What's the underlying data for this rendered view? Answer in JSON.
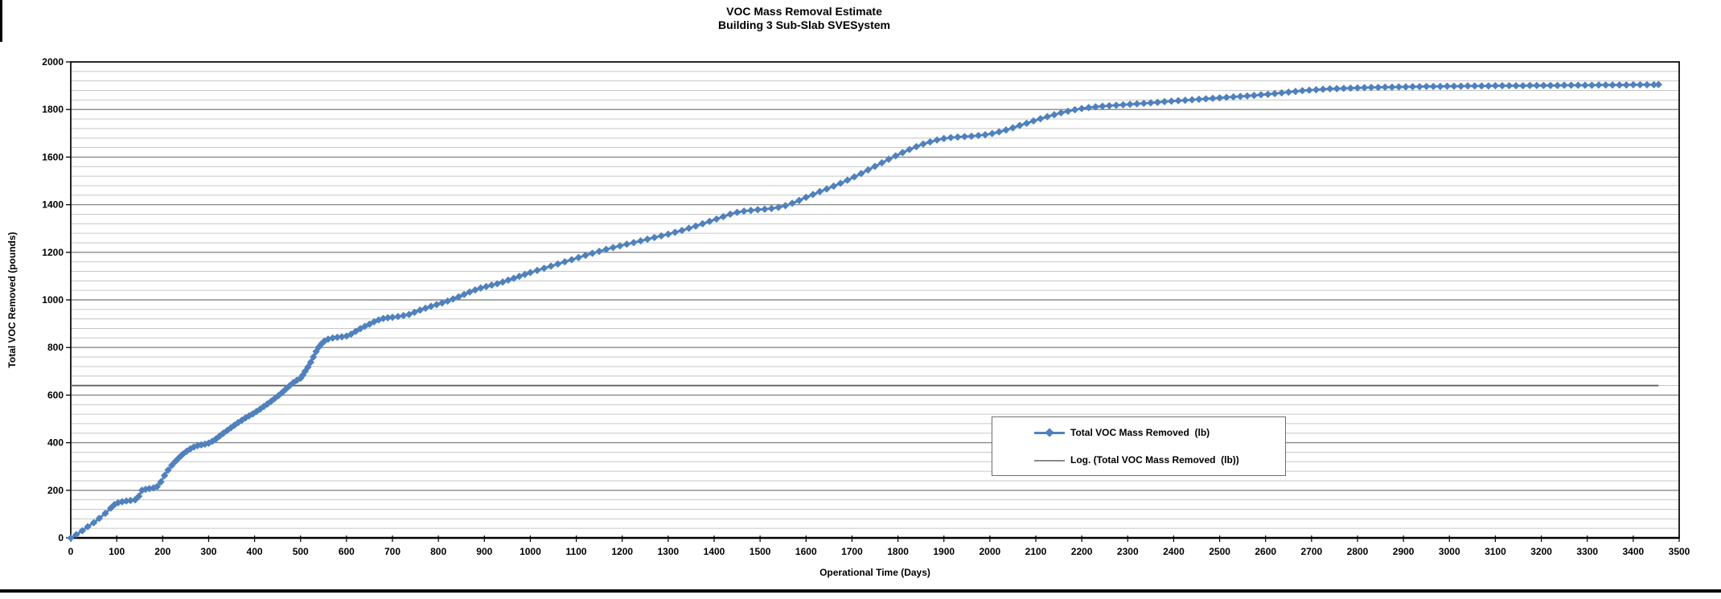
{
  "chart_data": {
    "type": "line",
    "title": "VOC Mass Removal Estimate",
    "subtitle": "Building 3 Sub-Slab SVESystem",
    "xlabel": "Operational Time (Days)",
    "ylabel": "Total VOC Removed (pounds)",
    "xlim": [
      0,
      3500
    ],
    "ylim": [
      0,
      2000
    ],
    "x_tick_step": 100,
    "y_tick_step": 200,
    "y_minor_step": 40,
    "grid": {
      "minor_color": "#c6c6c6",
      "major_color": "#8a8a8a"
    },
    "legend_position": "center-right",
    "series": [
      {
        "name": "Total VOC Mass Removed  (lb)",
        "color": "#4F81BD",
        "marker": "diamond",
        "points": [
          [
            0,
            0
          ],
          [
            12,
            14
          ],
          [
            25,
            30
          ],
          [
            37,
            47
          ],
          [
            50,
            64
          ],
          [
            62,
            82
          ],
          [
            75,
            103
          ],
          [
            87,
            125
          ],
          [
            95,
            140
          ],
          [
            103,
            148
          ],
          [
            112,
            152
          ],
          [
            121,
            155
          ],
          [
            130,
            157
          ],
          [
            140,
            160
          ],
          [
            148,
            175
          ],
          [
            155,
            200
          ],
          [
            163,
            204
          ],
          [
            171,
            207
          ],
          [
            180,
            210
          ],
          [
            188,
            216
          ],
          [
            196,
            235
          ],
          [
            204,
            262
          ],
          [
            212,
            285
          ],
          [
            220,
            305
          ],
          [
            228,
            322
          ],
          [
            236,
            338
          ],
          [
            244,
            352
          ],
          [
            252,
            364
          ],
          [
            260,
            374
          ],
          [
            268,
            382
          ],
          [
            276,
            388
          ],
          [
            284,
            391
          ],
          [
            292,
            394
          ],
          [
            300,
            398
          ],
          [
            308,
            406
          ],
          [
            316,
            416
          ],
          [
            324,
            428
          ],
          [
            332,
            440
          ],
          [
            340,
            451
          ],
          [
            348,
            462
          ],
          [
            356,
            473
          ],
          [
            364,
            484
          ],
          [
            372,
            494
          ],
          [
            380,
            504
          ],
          [
            388,
            513
          ],
          [
            396,
            521
          ],
          [
            404,
            531
          ],
          [
            412,
            541
          ],
          [
            420,
            552
          ],
          [
            428,
            563
          ],
          [
            436,
            574
          ],
          [
            444,
            586
          ],
          [
            452,
            598
          ],
          [
            460,
            611
          ],
          [
            468,
            625
          ],
          [
            476,
            639
          ],
          [
            484,
            652
          ],
          [
            492,
            662
          ],
          [
            500,
            671
          ],
          [
            505,
            684
          ],
          [
            510,
            700
          ],
          [
            516,
            718
          ],
          [
            522,
            738
          ],
          [
            528,
            760
          ],
          [
            534,
            783
          ],
          [
            540,
            802
          ],
          [
            546,
            816
          ],
          [
            552,
            827
          ],
          [
            560,
            835
          ],
          [
            570,
            840
          ],
          [
            580,
            843
          ],
          [
            590,
            845
          ],
          [
            600,
            848
          ],
          [
            610,
            856
          ],
          [
            620,
            868
          ],
          [
            630,
            879
          ],
          [
            640,
            889
          ],
          [
            650,
            898
          ],
          [
            660,
            908
          ],
          [
            670,
            916
          ],
          [
            680,
            922
          ],
          [
            690,
            925
          ],
          [
            700,
            927
          ],
          [
            712,
            930
          ],
          [
            724,
            934
          ],
          [
            736,
            939
          ],
          [
            748,
            948
          ],
          [
            760,
            957
          ],
          [
            772,
            965
          ],
          [
            784,
            973
          ],
          [
            796,
            980
          ],
          [
            808,
            987
          ],
          [
            820,
            995
          ],
          [
            832,
            1004
          ],
          [
            844,
            1013
          ],
          [
            856,
            1023
          ],
          [
            868,
            1033
          ],
          [
            880,
            1042
          ],
          [
            892,
            1050
          ],
          [
            904,
            1056
          ],
          [
            916,
            1062
          ],
          [
            928,
            1068
          ],
          [
            940,
            1075
          ],
          [
            952,
            1083
          ],
          [
            964,
            1091
          ],
          [
            976,
            1099
          ],
          [
            988,
            1107
          ],
          [
            1000,
            1115
          ],
          [
            1015,
            1124
          ],
          [
            1030,
            1133
          ],
          [
            1045,
            1142
          ],
          [
            1060,
            1151
          ],
          [
            1075,
            1160
          ],
          [
            1090,
            1169
          ],
          [
            1105,
            1178
          ],
          [
            1120,
            1187
          ],
          [
            1135,
            1196
          ],
          [
            1150,
            1204
          ],
          [
            1165,
            1212
          ],
          [
            1180,
            1220
          ],
          [
            1195,
            1227
          ],
          [
            1210,
            1234
          ],
          [
            1225,
            1241
          ],
          [
            1240,
            1248
          ],
          [
            1255,
            1255
          ],
          [
            1270,
            1262
          ],
          [
            1285,
            1269
          ],
          [
            1300,
            1276
          ],
          [
            1315,
            1284
          ],
          [
            1330,
            1292
          ],
          [
            1345,
            1301
          ],
          [
            1360,
            1310
          ],
          [
            1375,
            1320
          ],
          [
            1390,
            1330
          ],
          [
            1405,
            1340
          ],
          [
            1420,
            1350
          ],
          [
            1435,
            1360
          ],
          [
            1450,
            1368
          ],
          [
            1465,
            1373
          ],
          [
            1480,
            1376
          ],
          [
            1495,
            1379
          ],
          [
            1510,
            1381
          ],
          [
            1525,
            1384
          ],
          [
            1540,
            1389
          ],
          [
            1555,
            1396
          ],
          [
            1570,
            1406
          ],
          [
            1585,
            1418
          ],
          [
            1600,
            1431
          ],
          [
            1615,
            1443
          ],
          [
            1630,
            1455
          ],
          [
            1645,
            1466
          ],
          [
            1660,
            1478
          ],
          [
            1675,
            1490
          ],
          [
            1690,
            1503
          ],
          [
            1705,
            1517
          ],
          [
            1720,
            1531
          ],
          [
            1735,
            1546
          ],
          [
            1750,
            1561
          ],
          [
            1765,
            1576
          ],
          [
            1780,
            1591
          ],
          [
            1795,
            1605
          ],
          [
            1810,
            1619
          ],
          [
            1825,
            1632
          ],
          [
            1840,
            1644
          ],
          [
            1855,
            1655
          ],
          [
            1870,
            1664
          ],
          [
            1885,
            1672
          ],
          [
            1900,
            1678
          ],
          [
            1915,
            1682
          ],
          [
            1930,
            1684
          ],
          [
            1945,
            1686
          ],
          [
            1960,
            1688
          ],
          [
            1975,
            1691
          ],
          [
            1990,
            1694
          ],
          [
            2005,
            1699
          ],
          [
            2020,
            1706
          ],
          [
            2035,
            1714
          ],
          [
            2050,
            1723
          ],
          [
            2065,
            1733
          ],
          [
            2080,
            1742
          ],
          [
            2095,
            1752
          ],
          [
            2110,
            1761
          ],
          [
            2125,
            1770
          ],
          [
            2140,
            1778
          ],
          [
            2155,
            1786
          ],
          [
            2170,
            1793
          ],
          [
            2185,
            1799
          ],
          [
            2200,
            1804
          ],
          [
            2215,
            1808
          ],
          [
            2230,
            1811
          ],
          [
            2245,
            1814
          ],
          [
            2260,
            1816
          ],
          [
            2275,
            1818
          ],
          [
            2290,
            1820
          ],
          [
            2305,
            1822
          ],
          [
            2320,
            1824
          ],
          [
            2335,
            1826
          ],
          [
            2350,
            1828
          ],
          [
            2365,
            1830
          ],
          [
            2380,
            1833
          ],
          [
            2395,
            1835
          ],
          [
            2410,
            1837
          ],
          [
            2425,
            1839
          ],
          [
            2440,
            1841
          ],
          [
            2455,
            1843
          ],
          [
            2470,
            1845
          ],
          [
            2485,
            1847
          ],
          [
            2500,
            1849
          ],
          [
            2515,
            1851
          ],
          [
            2530,
            1853
          ],
          [
            2545,
            1855
          ],
          [
            2560,
            1857
          ],
          [
            2575,
            1859
          ],
          [
            2590,
            1862
          ],
          [
            2605,
            1864
          ],
          [
            2620,
            1867
          ],
          [
            2635,
            1870
          ],
          [
            2650,
            1873
          ],
          [
            2665,
            1876
          ],
          [
            2680,
            1879
          ],
          [
            2695,
            1881
          ],
          [
            2710,
            1883
          ],
          [
            2725,
            1885
          ],
          [
            2740,
            1887
          ],
          [
            2755,
            1888
          ],
          [
            2770,
            1889
          ],
          [
            2785,
            1890
          ],
          [
            2800,
            1891
          ],
          [
            2815,
            1892
          ],
          [
            2830,
            1893
          ],
          [
            2845,
            1893
          ],
          [
            2860,
            1894
          ],
          [
            2875,
            1894
          ],
          [
            2890,
            1895
          ],
          [
            2905,
            1895
          ],
          [
            2920,
            1896
          ],
          [
            2935,
            1896
          ],
          [
            2950,
            1897
          ],
          [
            2965,
            1897
          ],
          [
            2980,
            1897
          ],
          [
            2995,
            1898
          ],
          [
            3010,
            1898
          ],
          [
            3025,
            1898
          ],
          [
            3040,
            1899
          ],
          [
            3055,
            1899
          ],
          [
            3070,
            1899
          ],
          [
            3085,
            1899
          ],
          [
            3100,
            1900
          ],
          [
            3115,
            1900
          ],
          [
            3130,
            1900
          ],
          [
            3145,
            1900
          ],
          [
            3160,
            1900
          ],
          [
            3175,
            1901
          ],
          [
            3190,
            1901
          ],
          [
            3205,
            1901
          ],
          [
            3220,
            1901
          ],
          [
            3235,
            1901
          ],
          [
            3250,
            1902
          ],
          [
            3265,
            1902
          ],
          [
            3280,
            1902
          ],
          [
            3295,
            1902
          ],
          [
            3310,
            1902
          ],
          [
            3325,
            1903
          ],
          [
            3340,
            1903
          ],
          [
            3355,
            1903
          ],
          [
            3370,
            1903
          ],
          [
            3385,
            1903
          ],
          [
            3400,
            1904
          ],
          [
            3415,
            1904
          ],
          [
            3430,
            1904
          ],
          [
            3445,
            1904
          ],
          [
            3455,
            1905
          ]
        ]
      }
    ],
    "trendline": {
      "name": "Log. (Total VOC Mass Removed  (lb))",
      "color": "#5f5f5f",
      "value": 640,
      "x_start": 0,
      "x_end": 3455
    }
  }
}
